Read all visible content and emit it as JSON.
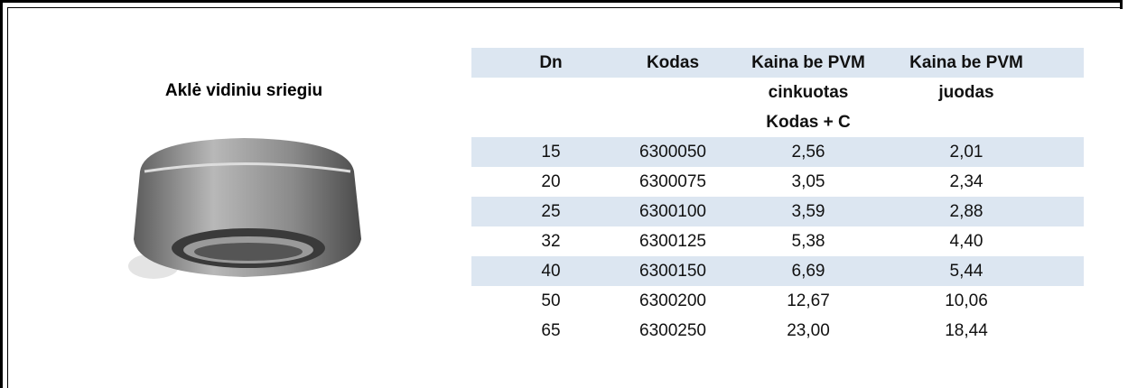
{
  "product": {
    "title": "Aklė vidiniu sriegiu"
  },
  "table": {
    "header": [
      [
        "Dn"
      ],
      [
        "Kodas"
      ],
      [
        "Kaina be PVM",
        "cinkuotas",
        "Kodas + C"
      ],
      [
        "Kaina be PVM",
        "juodas"
      ]
    ],
    "rows": [
      [
        "15",
        "6300050",
        "2,56",
        "2,01"
      ],
      [
        "20",
        "6300075",
        "3,05",
        "2,34"
      ],
      [
        "25",
        "6300100",
        "3,59",
        "2,88"
      ],
      [
        "32",
        "6300125",
        "5,38",
        "4,40"
      ],
      [
        "40",
        "6300150",
        "6,69",
        "5,44"
      ],
      [
        "50",
        "6300200",
        "12,67",
        "10,06"
      ],
      [
        "65",
        "6300250",
        "23,00",
        "18,44"
      ]
    ]
  }
}
